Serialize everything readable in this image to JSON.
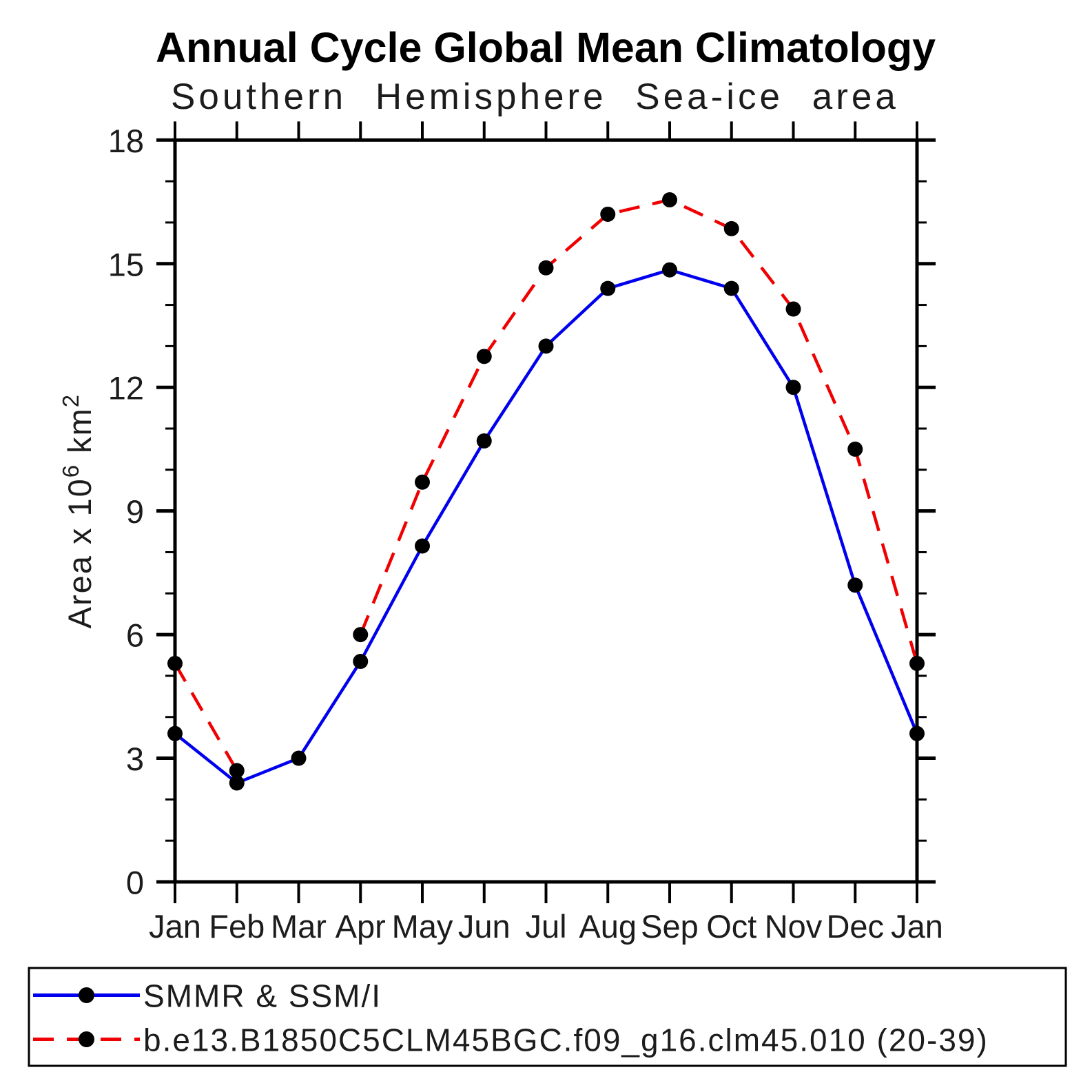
{
  "page": {
    "background": "#ffffff",
    "axis_color": "#000000"
  },
  "title": "Annual Cycle Global Mean Climatology",
  "subtitle": "Southern Hemisphere Sea-ice area",
  "chart_data": {
    "type": "line",
    "categories": [
      "Jan",
      "Feb",
      "Mar",
      "Apr",
      "May",
      "Jun",
      "Jul",
      "Aug",
      "Sep",
      "Oct",
      "Nov",
      "Dec",
      "Jan"
    ],
    "series": [
      {
        "name": "SMMR & SSM/I",
        "color": "#0000ee",
        "line_style": "solid",
        "marker": "filled-circle",
        "marker_color": "#000000",
        "values": [
          3.6,
          2.4,
          3.0,
          5.35,
          8.15,
          10.7,
          13.0,
          14.4,
          14.85,
          14.4,
          12.0,
          7.2,
          3.6
        ]
      },
      {
        "name": "b.e13.B1850C5CLM45BGC.f09_g16.clm45.010 (20-39)",
        "color": "#f00000",
        "line_style": "dashed",
        "marker": "filled-circle",
        "marker_color": "#000000",
        "values": [
          5.3,
          2.7,
          null,
          6.0,
          9.7,
          12.75,
          14.9,
          16.2,
          16.55,
          15.85,
          13.9,
          10.5,
          5.3
        ]
      }
    ],
    "xlabel": "",
    "ylabel": "Area x 10⁶ km²",
    "ylabel_parts": [
      {
        "t": "Area x 10"
      },
      {
        "t": "6",
        "sup": true
      },
      {
        "t": " km"
      },
      {
        "t": "2",
        "sup": true
      }
    ],
    "ylim": [
      0,
      18
    ],
    "ytick_major": [
      0,
      3,
      6,
      9,
      12,
      15,
      18
    ],
    "ytick_minor_step": 1,
    "grid": false,
    "legend_position": "bottom-box"
  }
}
